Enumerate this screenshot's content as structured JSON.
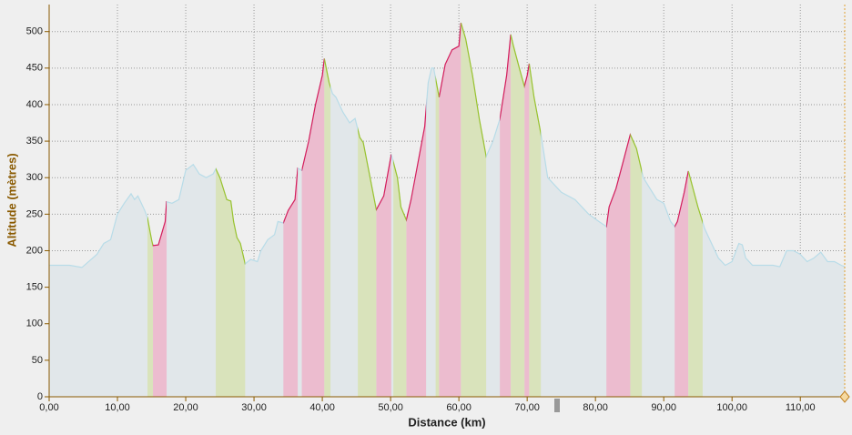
{
  "chart_data": {
    "type": "area",
    "xlabel": "Distance (km)",
    "ylabel": "Altitude (mètres)",
    "xlim": [
      0,
      116.5
    ],
    "ylim": [
      0,
      537
    ],
    "xticks": [
      {
        "value": 0,
        "label": "0,00"
      },
      {
        "value": 10,
        "label": "10,00"
      },
      {
        "value": 20,
        "label": "20,00"
      },
      {
        "value": 30,
        "label": "30,00"
      },
      {
        "value": 40,
        "label": "40,00"
      },
      {
        "value": 50,
        "label": "50,00"
      },
      {
        "value": 60,
        "label": "60,00"
      },
      {
        "value": 70,
        "label": "70,00"
      },
      {
        "value": 80,
        "label": "80,00"
      },
      {
        "value": 90,
        "label": "90,00"
      },
      {
        "value": 100,
        "label": "100,00"
      },
      {
        "value": 110,
        "label": "110,00"
      }
    ],
    "yticks": [
      0,
      50,
      100,
      150,
      200,
      250,
      300,
      350,
      400,
      450,
      500
    ],
    "grid": true,
    "color": "#b8dce8",
    "fill_color": "#e1e7ea",
    "climb_color": "#d81b5a",
    "climb_fill": "#ecbccf",
    "descent_color": "#9cc32b",
    "descent_fill": "#d9e3bb",
    "x": [
      0,
      3,
      4.8,
      7,
      8,
      9,
      10,
      11,
      12,
      12.5,
      13,
      14,
      14.4,
      15,
      15.2,
      16,
      17,
      17.2,
      18,
      19,
      20,
      21.1,
      22,
      23,
      24,
      24.4,
      25,
      26,
      26.6,
      27,
      27.5,
      28,
      28.7,
      29.5,
      30.5,
      31,
      32,
      33,
      33.5,
      34.3,
      35,
      36,
      36.4,
      37,
      38,
      39,
      40,
      40.3,
      41,
      41.5,
      42,
      43,
      44,
      44.8,
      45.5,
      46,
      47,
      47.9,
      49,
      50.1,
      51,
      51.5,
      52.3,
      53,
      54,
      55,
      55.5,
      56,
      56.3,
      57.1,
      58,
      59,
      60,
      60.3,
      61,
      62,
      63,
      64,
      65,
      66,
      67,
      67.6,
      68,
      69,
      69.6,
      70,
      70.3,
      71,
      72,
      73,
      75,
      77,
      79,
      80.5,
      81.6,
      82,
      83,
      84,
      85.1,
      86,
      87,
      88,
      89,
      90,
      91,
      91.6,
      92,
      93,
      93.6,
      94,
      95,
      96,
      97,
      98,
      99,
      100,
      101,
      101.5,
      102,
      103,
      104,
      106,
      107,
      108,
      109,
      110,
      111,
      112,
      113,
      114,
      115,
      116,
      116.5
    ],
    "values": [
      180,
      180,
      177,
      195,
      210,
      215,
      250,
      265,
      278,
      270,
      275,
      255,
      245,
      215,
      207,
      208,
      240,
      267,
      265,
      270,
      310,
      318,
      305,
      300,
      305,
      312,
      300,
      270,
      268,
      240,
      218,
      210,
      182,
      188,
      185,
      200,
      215,
      222,
      240,
      238,
      255,
      270,
      313,
      310,
      350,
      400,
      440,
      463,
      430,
      415,
      410,
      390,
      375,
      381,
      355,
      348,
      300,
      256,
      275,
      332,
      300,
      260,
      242,
      270,
      320,
      370,
      430,
      450,
      450,
      410,
      455,
      475,
      480,
      512,
      490,
      440,
      380,
      329,
      350,
      380,
      440,
      496,
      480,
      445,
      425,
      440,
      456,
      410,
      360,
      300,
      280,
      270,
      250,
      240,
      233,
      260,
      285,
      320,
      359,
      340,
      300,
      285,
      270,
      265,
      240,
      233,
      240,
      280,
      309,
      295,
      260,
      230,
      210,
      190,
      180,
      185,
      210,
      208,
      190,
      180,
      180,
      180,
      178,
      200,
      200,
      195,
      185,
      190,
      198,
      185,
      185,
      180,
      178
    ],
    "climbs": [
      [
        15.2,
        17.2
      ],
      [
        34.3,
        36.4
      ],
      [
        37.0,
        40.3
      ],
      [
        47.9,
        50.1
      ],
      [
        52.3,
        55.2
      ],
      [
        57.1,
        60.3
      ],
      [
        66.0,
        67.6
      ],
      [
        69.6,
        70.3
      ],
      [
        81.6,
        85.1
      ],
      [
        91.6,
        93.6
      ]
    ],
    "descents": [
      [
        14.4,
        15.2
      ],
      [
        24.4,
        28.7
      ],
      [
        40.3,
        41.2
      ],
      [
        45.2,
        47.9
      ],
      [
        50.4,
        52.3
      ],
      [
        56.6,
        57.1
      ],
      [
        60.3,
        64.0
      ],
      [
        67.6,
        69.6
      ],
      [
        70.3,
        72.0
      ],
      [
        85.1,
        86.8
      ],
      [
        93.6,
        95.7
      ]
    ]
  }
}
